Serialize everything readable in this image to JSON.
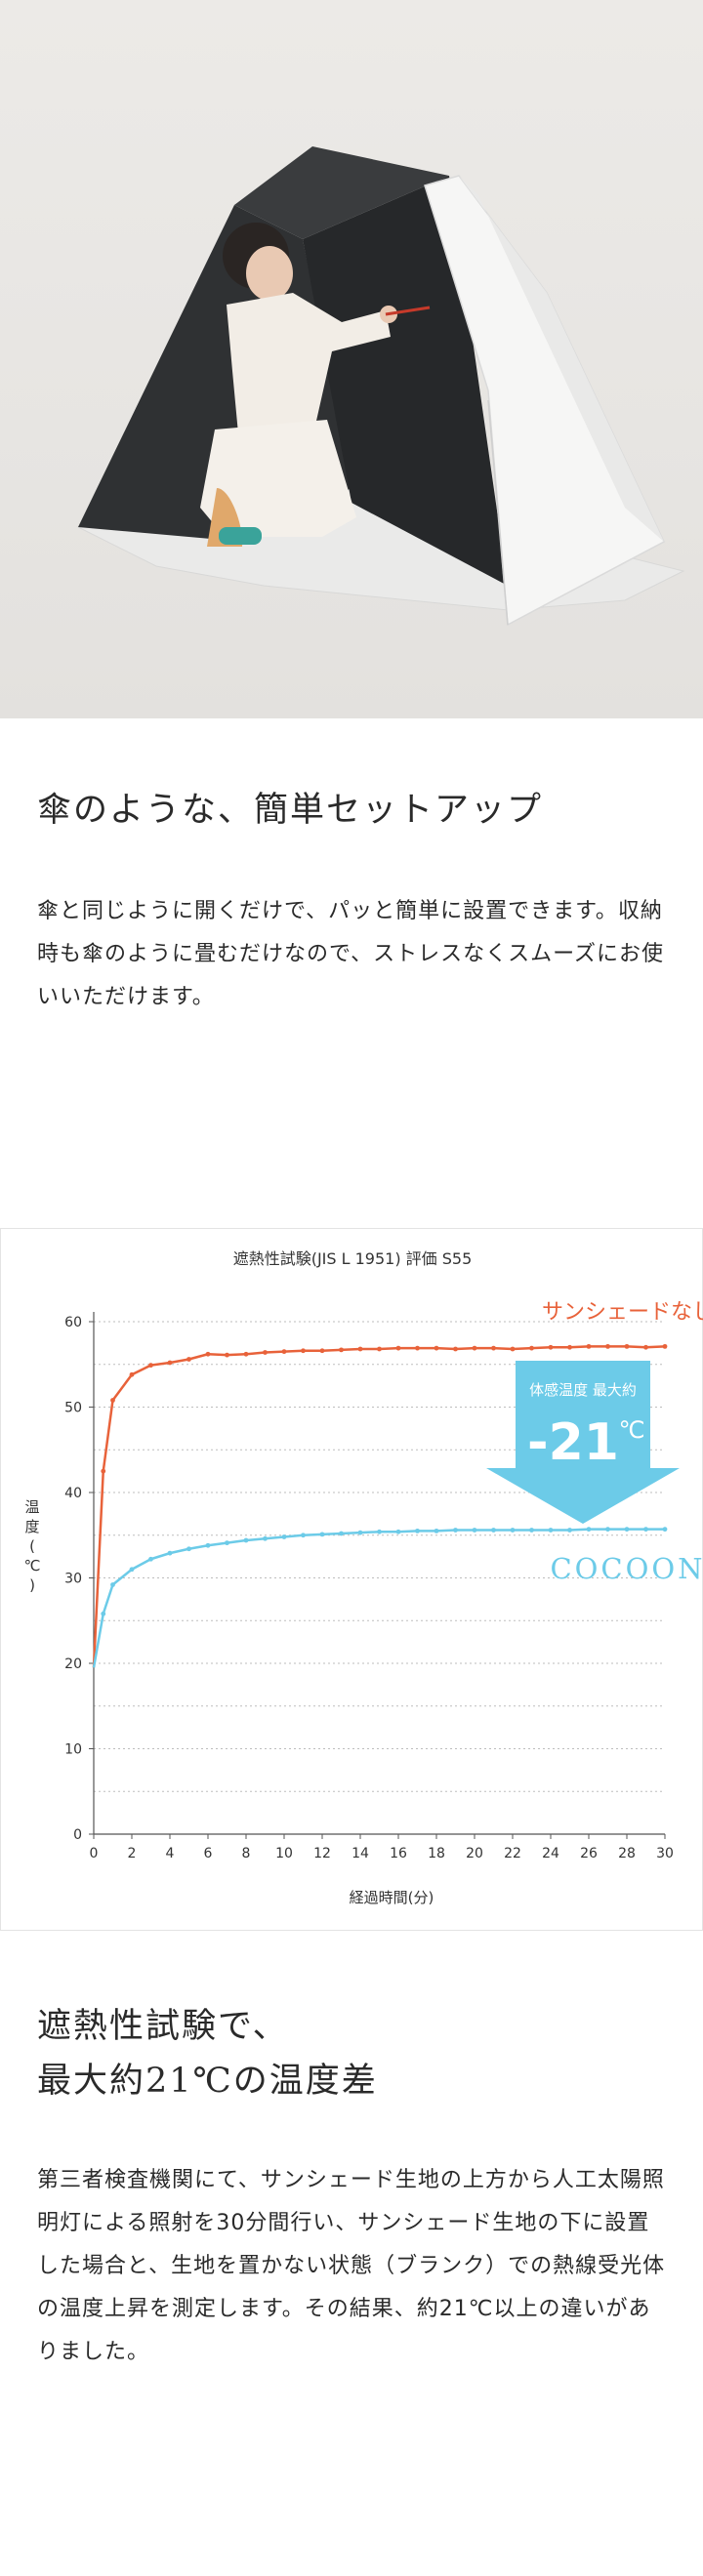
{
  "section1": {
    "heading": "傘のような、簡単セットアップ",
    "body": "傘と同じように開くだけで、パッと簡単に設置できます。収納時も傘のように畳むだけなので、ストレスなくスムーズにお使いいただけます。"
  },
  "section2": {
    "heading": "遮熱性試験で、\n最大約21℃の温度差",
    "body": "第三者検査機関にて、サンシェード生地の上方から人工太陽照明灯による照射を30分間行い、サンシェード生地の下に設置した場合と、生地を置かない状態（ブランク）での熱線受光体の温度上昇を測定します。その結果、約21℃以上の違いがありました。"
  },
  "chart_data": {
    "type": "line",
    "title": "遮熱性試験(JIS L 1951) 評価 S55",
    "xlabel": "経過時間(分)",
    "ylabel": "温度(℃)",
    "xlim": [
      0,
      30
    ],
    "ylim": [
      0,
      60
    ],
    "xticks": [
      0,
      2,
      4,
      6,
      8,
      10,
      12,
      14,
      16,
      18,
      20,
      22,
      24,
      26,
      28,
      30
    ],
    "yticks": [
      0,
      10,
      20,
      30,
      40,
      50,
      60
    ],
    "grid": "horizontal dotted",
    "x": [
      0,
      0.5,
      1,
      2,
      3,
      4,
      5,
      6,
      7,
      8,
      9,
      10,
      11,
      12,
      13,
      14,
      15,
      16,
      17,
      18,
      19,
      20,
      21,
      22,
      23,
      24,
      25,
      26,
      27,
      28,
      29,
      30
    ],
    "series": [
      {
        "name": "サンシェードなし",
        "color": "#e8623a",
        "values": [
          19.5,
          42.5,
          50.8,
          53.8,
          54.9,
          55.2,
          55.6,
          56.2,
          56.1,
          56.2,
          56.4,
          56.5,
          56.6,
          56.6,
          56.7,
          56.8,
          56.8,
          56.9,
          56.9,
          56.9,
          56.8,
          56.9,
          56.9,
          56.8,
          56.9,
          57.0,
          57.0,
          57.1,
          57.1,
          57.1,
          57.0,
          57.1
        ]
      },
      {
        "name": "COCOON",
        "color": "#6ccbe8",
        "values": [
          19.5,
          25.8,
          29.2,
          31.0,
          32.2,
          32.9,
          33.4,
          33.8,
          34.1,
          34.4,
          34.6,
          34.8,
          35.0,
          35.1,
          35.2,
          35.3,
          35.4,
          35.4,
          35.5,
          35.5,
          35.6,
          35.6,
          35.6,
          35.6,
          35.6,
          35.6,
          35.6,
          35.7,
          35.7,
          35.7,
          35.7,
          35.7
        ]
      }
    ],
    "annotation": {
      "label": "体感温度 最大約",
      "value": "-21",
      "unit": "℃",
      "color": "#6ccbe8"
    }
  }
}
